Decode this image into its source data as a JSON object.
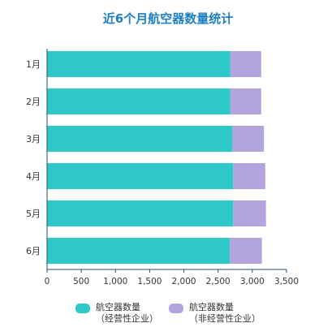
{
  "chart_data": {
    "type": "bar",
    "orientation": "horizontal",
    "stacked": true,
    "title": "近6个月航空器数量统计",
    "categories": [
      "1月",
      "2月",
      "3月",
      "4月",
      "5月",
      "6月"
    ],
    "series": [
      {
        "name": "航空器数量（经营性企业）",
        "name_lines": [
          "航空器数量",
          "（经营性企业）"
        ],
        "color": "#2ec8c8",
        "values": [
          2680,
          2680,
          2710,
          2720,
          2720,
          2670
        ]
      },
      {
        "name": "航空器数量（非经营性企业）",
        "name_lines": [
          "航空器数量",
          "（非经营性企业）"
        ],
        "color": "#b3a4de",
        "values": [
          450,
          450,
          460,
          470,
          480,
          470
        ]
      }
    ],
    "xlim": [
      0,
      3500
    ],
    "xticks": [
      "0",
      "500",
      "1,000",
      "1,500",
      "2,000",
      "2,500",
      "3,000",
      "3,500"
    ],
    "xtick_values": [
      0,
      500,
      1000,
      1500,
      2000,
      2500,
      3000,
      3500
    ],
    "grid": false,
    "legend": "bottom"
  }
}
